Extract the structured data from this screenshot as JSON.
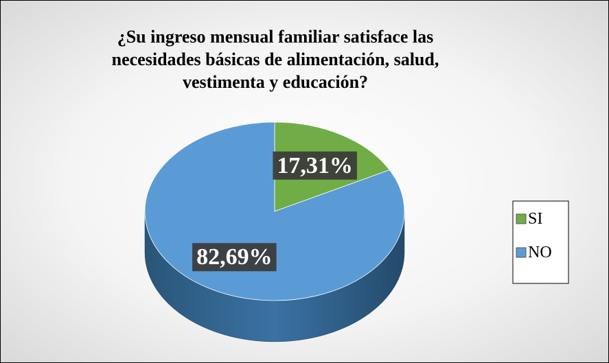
{
  "chart_data": {
    "type": "pie",
    "title": "¿Su ingreso mensual familiar satisface las necesidades básicas de alimentación, salud, vestimenta y educación?",
    "categories": [
      "SI",
      "NO"
    ],
    "values": [
      17.31,
      82.69
    ],
    "value_labels": [
      "17,31%",
      "82,69%"
    ],
    "colors": [
      "#70ad47",
      "#5b9bd5"
    ],
    "legend": "right"
  }
}
